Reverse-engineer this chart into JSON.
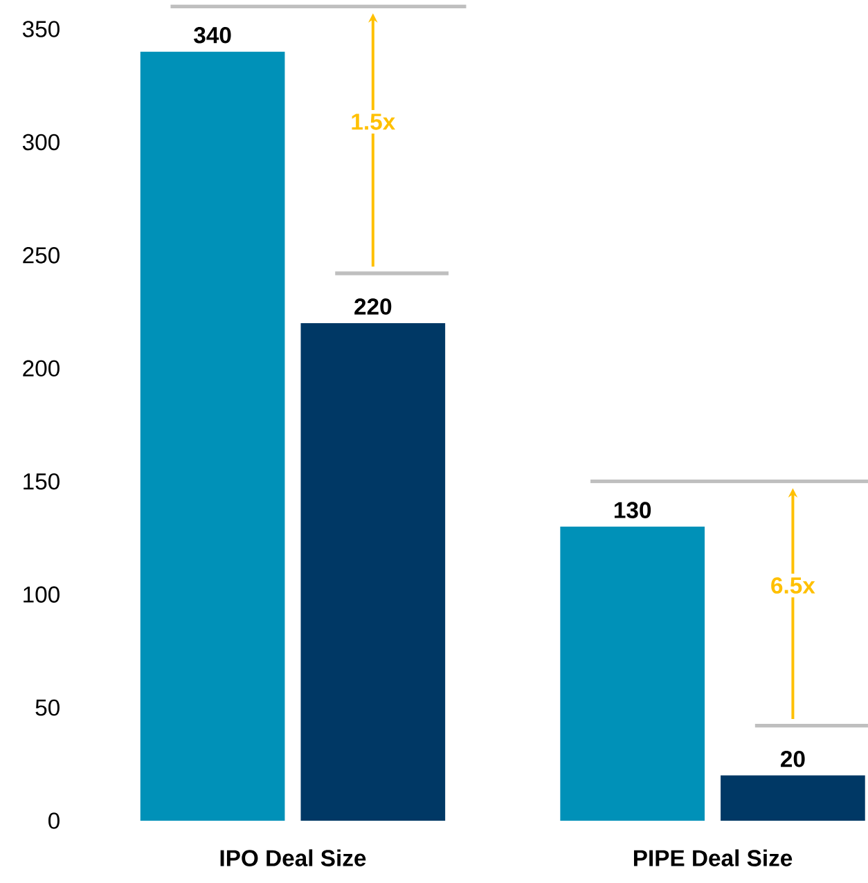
{
  "chart_data": {
    "type": "bar",
    "categories": [
      "IPO Deal Size",
      "PIPE Deal Size"
    ],
    "series": [
      {
        "color": "#0091b8",
        "values": [
          340,
          130
        ]
      },
      {
        "color": "#003865",
        "values": [
          220,
          20
        ]
      }
    ],
    "ylim": [
      0,
      350
    ],
    "yticks": [
      0,
      50,
      100,
      150,
      200,
      250,
      300,
      350
    ],
    "data_labels": true,
    "annotations": [
      "1.5x",
      "6.5x"
    ]
  }
}
